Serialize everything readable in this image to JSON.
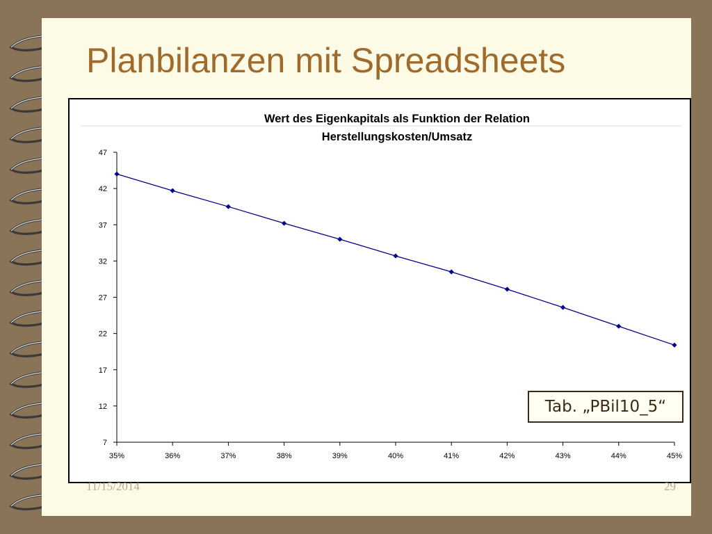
{
  "slide": {
    "title": "Planbilanzen mit Spreadsheets",
    "tab_label": "Tab. „PBil10_5“",
    "footer_date": "11/15/2014",
    "footer_page": "29"
  },
  "colors": {
    "background": "#8a7458",
    "slide": "#fdfae6",
    "title": "#a06a2c",
    "series": "#00008b"
  },
  "chart_data": {
    "type": "line",
    "title_lines": [
      "Wert des Eigenkapitals als Funktion der Relation",
      "Herstellungskosten/Umsatz"
    ],
    "x": [
      "35%",
      "36%",
      "37%",
      "38%",
      "39%",
      "40%",
      "41%",
      "42%",
      "43%",
      "44%",
      "45%"
    ],
    "series": [
      {
        "values": [
          44.0,
          41.7,
          39.5,
          37.2,
          35.0,
          32.7,
          30.5,
          28.1,
          25.6,
          23.0,
          20.4
        ]
      }
    ],
    "ylim": [
      7,
      47
    ],
    "yticks": [
      7,
      12,
      17,
      22,
      27,
      32,
      37,
      42,
      47
    ],
    "marker": "diamond",
    "grid": false,
    "legend": "none"
  }
}
